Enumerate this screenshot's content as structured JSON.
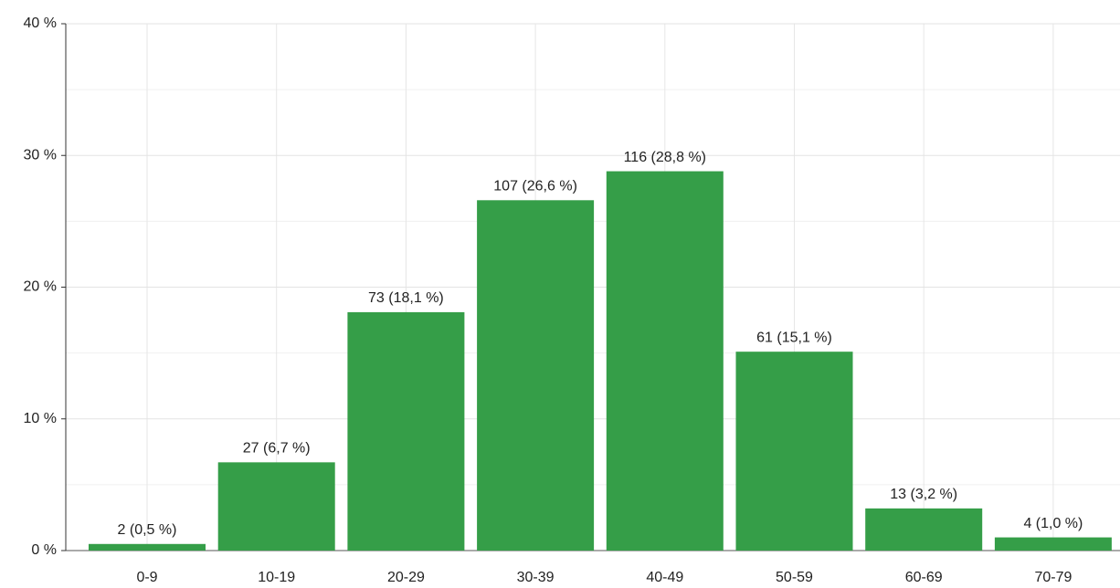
{
  "chart_data": {
    "type": "bar",
    "categories": [
      "0-9",
      "10-19",
      "20-29",
      "30-39",
      "40-49",
      "50-59",
      "60-69",
      "70-79"
    ],
    "values": [
      0.5,
      6.7,
      18.1,
      26.6,
      28.8,
      15.1,
      3.2,
      1.0
    ],
    "value_labels": [
      "2 (0,5 %)",
      "27 (6,7 %)",
      "73 (18,1 %)",
      "107 (26,6 %)",
      "116 (28,8 %)",
      "61 (15,1 %)",
      "13 (3,2 %)",
      "4 (1,0 %)"
    ],
    "color": "#359e48",
    "ylim": [
      0,
      40
    ],
    "yticks": [
      {
        "value": 0,
        "label": "0 %"
      },
      {
        "value": 10,
        "label": "10 %"
      },
      {
        "value": 20,
        "label": "20 %"
      },
      {
        "value": 30,
        "label": "30 %"
      },
      {
        "value": 40,
        "label": "40 %"
      }
    ],
    "minor_yticks": [
      5,
      15,
      25,
      35
    ],
    "grid": true
  }
}
